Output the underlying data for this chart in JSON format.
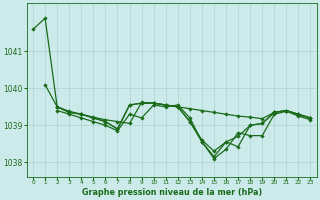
{
  "title": "Graphe pression niveau de la mer (hPa)",
  "background_color": "#cceaea",
  "grid_color": "#aad4d4",
  "line_color": "#1a6b1a",
  "text_color": "#1a6b1a",
  "xlim": [
    -0.5,
    23.5
  ],
  "ylim": [
    1037.6,
    1042.3
  ],
  "yticks": [
    1038,
    1039,
    1040,
    1041
  ],
  "series": [
    {
      "x": [
        0,
        1,
        2,
        3,
        4,
        5,
        6,
        7,
        8,
        9,
        10,
        11,
        12,
        13,
        14,
        15,
        16,
        17,
        18,
        19,
        20,
        21,
        22,
        23
      ],
      "y": [
        1041.6,
        1041.9,
        1039.5,
        1039.35,
        1039.3,
        1039.2,
        1039.1,
        1038.9,
        1039.55,
        1039.6,
        1039.6,
        1039.55,
        1039.5,
        1039.45,
        1039.4,
        1039.35,
        1039.3,
        1039.25,
        1039.22,
        1039.18,
        1039.35,
        1039.4,
        1039.3,
        1039.2
      ]
    },
    {
      "x": [
        1,
        2,
        3,
        4,
        5,
        6,
        7,
        8,
        9,
        10,
        11,
        12,
        13,
        14,
        15,
        16,
        17,
        18,
        19,
        20,
        21,
        22,
        23
      ],
      "y": [
        1040.1,
        1039.5,
        1039.35,
        1039.3,
        1039.2,
        1039.1,
        1038.9,
        1039.55,
        1039.6,
        1039.6,
        1039.55,
        1039.5,
        1039.1,
        1038.6,
        1038.3,
        1038.55,
        1038.7,
        1039.0,
        1039.05,
        1039.35,
        1039.4,
        1039.3,
        1039.2
      ]
    },
    {
      "x": [
        2,
        3,
        4,
        5,
        6,
        7,
        8,
        9,
        10,
        11,
        12,
        13,
        14,
        15,
        16,
        17,
        18,
        19,
        20,
        21,
        22,
        23
      ],
      "y": [
        1039.5,
        1039.38,
        1039.3,
        1039.22,
        1039.15,
        1039.1,
        1039.05,
        1039.62,
        1039.6,
        1039.55,
        1039.5,
        1039.1,
        1038.55,
        1038.15,
        1038.55,
        1038.42,
        1039.0,
        1039.05,
        1039.35,
        1039.4,
        1039.28,
        1039.2
      ]
    },
    {
      "x": [
        2,
        3,
        4,
        5,
        6,
        7,
        8,
        9,
        10,
        11,
        12,
        13,
        14,
        15,
        16,
        17,
        18,
        19,
        20,
        21,
        22,
        23
      ],
      "y": [
        1039.4,
        1039.3,
        1039.2,
        1039.1,
        1039.0,
        1038.85,
        1039.3,
        1039.2,
        1039.55,
        1039.5,
        1039.55,
        1039.2,
        1038.55,
        1038.1,
        1038.35,
        1038.8,
        1038.72,
        1038.72,
        1039.3,
        1039.38,
        1039.25,
        1039.15
      ]
    }
  ]
}
